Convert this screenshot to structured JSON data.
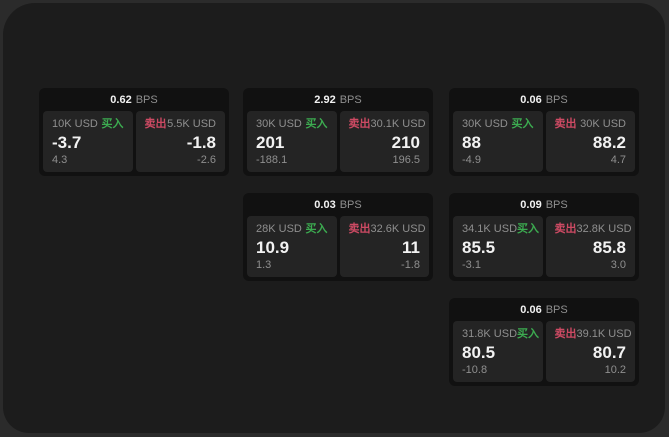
{
  "colors": {
    "page-bg": "#2b2b2b",
    "window-bg": "#1c1c1c",
    "card-bg": "#111111",
    "panel-bg": "#242424",
    "text-primary": "#f2f2f2",
    "text-secondary": "#8f8f8f",
    "buy-green": "#3cab50",
    "sell-red": "#cd4a63"
  },
  "labels": {
    "bps_suffix": "BPS",
    "buy": "买入",
    "sell": "卖出"
  },
  "cards": [
    {
      "bps": "0.62",
      "buy": {
        "size": "10K USD",
        "price": "-3.7",
        "delta": "4.3"
      },
      "sell": {
        "size": "5.5K USD",
        "price": "-1.8",
        "delta": "-2.6"
      }
    },
    {
      "bps": "2.92",
      "buy": {
        "size": "30K USD",
        "price": "201",
        "delta": "-188.1"
      },
      "sell": {
        "size": "30.1K USD",
        "price": "210",
        "delta": "196.5"
      }
    },
    {
      "bps": "0.03",
      "buy": {
        "size": "28K USD",
        "price": "10.9",
        "delta": "1.3"
      },
      "sell": {
        "size": "32.6K USD",
        "price": "11",
        "delta": "-1.8"
      }
    },
    {
      "bps": "0.06",
      "buy": {
        "size": "30K USD",
        "price": "88",
        "delta": "-4.9"
      },
      "sell": {
        "size": "30K USD",
        "price": "88.2",
        "delta": "4.7"
      }
    },
    {
      "bps": "0.09",
      "buy": {
        "size": "34.1K USD",
        "price": "85.5",
        "delta": "-3.1"
      },
      "sell": {
        "size": "32.8K USD",
        "price": "85.8",
        "delta": "3.0"
      }
    },
    {
      "bps": "0.06",
      "buy": {
        "size": "31.8K USD",
        "price": "80.5",
        "delta": "-10.8"
      },
      "sell": {
        "size": "39.1K USD",
        "price": "80.7",
        "delta": "10.2"
      }
    }
  ]
}
